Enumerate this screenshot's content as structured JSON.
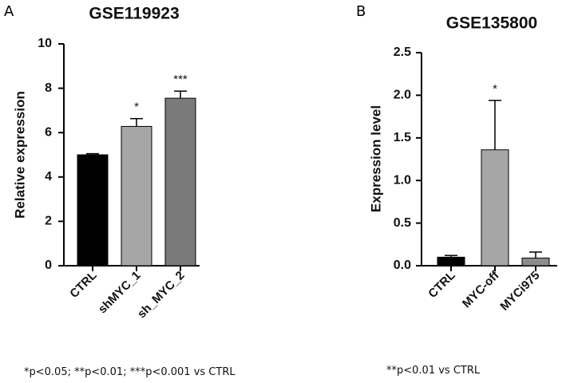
{
  "chart_data": [
    {
      "type": "bar",
      "panel": "A",
      "title": "GSE119923",
      "xlabel": "",
      "ylabel": "Relative expression",
      "ylim": [
        0,
        10
      ],
      "yticks": [
        "0",
        "2",
        "4",
        "6",
        "8",
        "10"
      ],
      "categories": [
        "CTRL",
        "shMYC_1",
        "sh_MYC_2"
      ],
      "values": [
        5.0,
        6.28,
        7.55
      ],
      "errors": [
        0.05,
        0.35,
        0.32
      ],
      "colors": [
        "#000000",
        "#a6a6a6",
        "#7a7a7a"
      ],
      "annotations": [
        "",
        "*",
        "***"
      ],
      "footnote": "*p<0.05; **p<0.01; ***p<0.001 vs CTRL"
    },
    {
      "type": "bar",
      "panel": "B",
      "title": "GSE135800",
      "xlabel": "",
      "ylabel": "Expression level",
      "ylim": [
        0,
        2.5
      ],
      "yticks": [
        "0.0",
        "0.5",
        "1.0",
        "1.5",
        "2.0",
        "2.5"
      ],
      "categories": [
        "CTRL",
        "MYC-off",
        "MYCi975"
      ],
      "values": [
        0.1,
        1.36,
        0.09
      ],
      "errors": [
        0.02,
        0.58,
        0.07
      ],
      "colors": [
        "#000000",
        "#a6a6a6",
        "#8c8c8c"
      ],
      "annotations": [
        "",
        "*",
        ""
      ],
      "footnote": "**p<0.01 vs CTRL"
    }
  ]
}
